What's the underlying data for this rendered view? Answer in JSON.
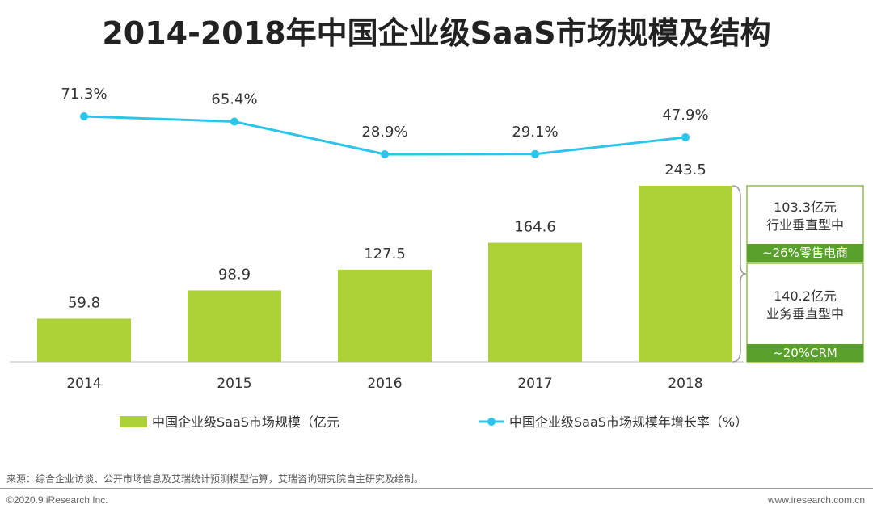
{
  "chart_data": {
    "type": "bar",
    "title": "2014-2018年中国企业级SaaS市场规模及结构",
    "categories": [
      "2014",
      "2015",
      "2016",
      "2017",
      "2018"
    ],
    "series": [
      {
        "name": "中国企业级SaaS市场规模（亿元",
        "kind": "bar",
        "values": [
          59.8,
          98.9,
          127.5,
          164.6,
          243.5
        ],
        "labels": [
          "59.8",
          "98.9",
          "127.5",
          "164.6",
          "243.5"
        ]
      },
      {
        "name": "中国企业级SaaS市场规模年增长率（%）",
        "kind": "line",
        "values": [
          71.3,
          65.4,
          28.9,
          29.1,
          47.9
        ],
        "labels": [
          "71.3%",
          "65.4%",
          "28.9%",
          "29.1%",
          "47.9%"
        ]
      }
    ],
    "ylim_bar": [
      0,
      260
    ],
    "ylim_line": [
      0,
      100
    ],
    "breakdown_2018": [
      {
        "value": "103.3亿元",
        "desc": "行业垂直型中",
        "tag": "~26%零售电商"
      },
      {
        "value": "140.2亿元",
        "desc": "业务垂直型中",
        "tag": "~20%CRM"
      }
    ],
    "colors": {
      "bar": "#acd136",
      "line": "#29c5ea",
      "tag_bg": "#5aa02c",
      "box_border": "#8fbf4a"
    }
  },
  "footer": {
    "source": "来源：综合企业访谈、公开市场信息及艾瑞统计预测模型估算，艾瑞咨询研究院自主研究及绘制。",
    "copyright": "©2020.9 iResearch Inc.",
    "website": "www.iresearch.com.cn"
  }
}
